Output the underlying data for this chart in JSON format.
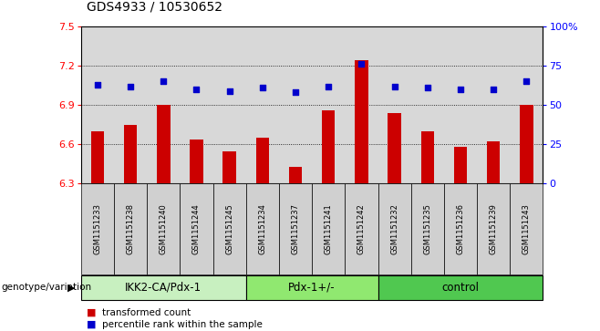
{
  "title": "GDS4933 / 10530652",
  "samples": [
    "GSM1151233",
    "GSM1151238",
    "GSM1151240",
    "GSM1151244",
    "GSM1151245",
    "GSM1151234",
    "GSM1151237",
    "GSM1151241",
    "GSM1151242",
    "GSM1151232",
    "GSM1151235",
    "GSM1151236",
    "GSM1151239",
    "GSM1151243"
  ],
  "bar_values": [
    6.7,
    6.75,
    6.9,
    6.64,
    6.55,
    6.65,
    6.43,
    6.86,
    7.24,
    6.84,
    6.7,
    6.58,
    6.62,
    6.9
  ],
  "dot_values": [
    63,
    62,
    65,
    60,
    59,
    61,
    58,
    62,
    76,
    62,
    61,
    60,
    60,
    65
  ],
  "groups": [
    {
      "label": "IKK2-CA/Pdx-1",
      "count": 5,
      "color": "#c8f0c0"
    },
    {
      "label": "Pdx-1+/-",
      "count": 4,
      "color": "#90e870"
    },
    {
      "label": "control",
      "count": 5,
      "color": "#50c850"
    }
  ],
  "ylim_left": [
    6.3,
    7.5
  ],
  "ylim_right": [
    0,
    100
  ],
  "yticks_left": [
    6.3,
    6.6,
    6.9,
    7.2,
    7.5
  ],
  "yticks_right": [
    0,
    25,
    50,
    75,
    100
  ],
  "ytick_labels_right": [
    "0",
    "25",
    "50",
    "75",
    "100%"
  ],
  "hgrid_at": [
    6.6,
    6.9,
    7.2
  ],
  "bar_color": "#cc0000",
  "dot_color": "#0000cc",
  "bar_width": 0.4,
  "genotype_label": "genotype/variation",
  "legend_bar_label": "transformed count",
  "legend_dot_label": "percentile rank within the sample",
  "panel_bg": "#d8d8d8",
  "tick_bg": "#d0d0d0"
}
